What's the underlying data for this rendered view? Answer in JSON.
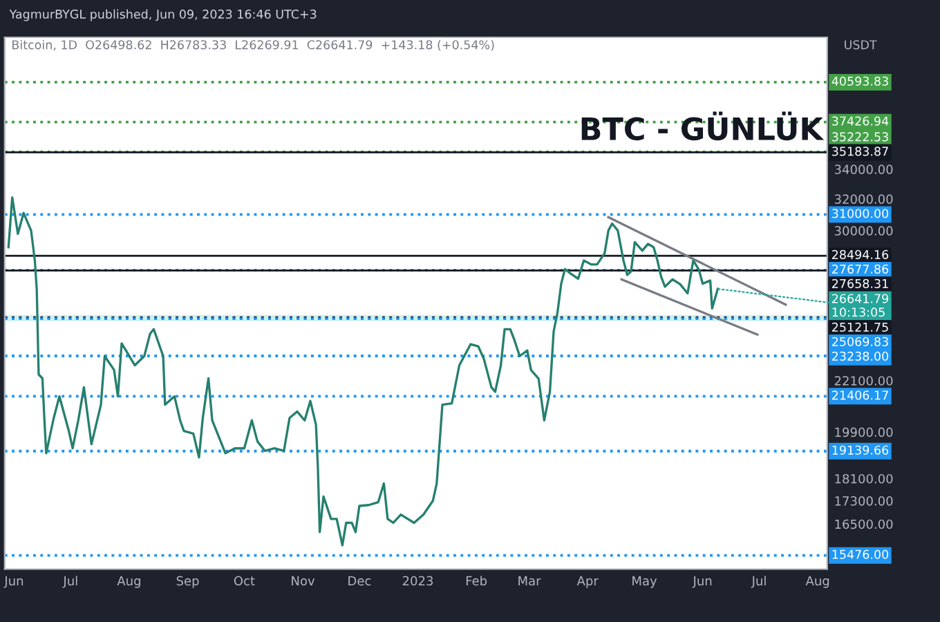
{
  "chart_data": {
    "type": "line",
    "title": "BTC - GÜNLÜK",
    "subtitle": "YagmurBYGL published, Jun 09, 2023 16:46 UTC+3",
    "annotations": [
      "Bitcoin, 1D  O26498.62  H26783.33  L26269.91  C26641.79  +143.18 (+0.54%)",
      "USDT",
      {
        "text": "26641.79\n10:13:05",
        "x": "2023-06-09",
        "y": 26641.79
      }
    ],
    "series": [
      {
        "color": "#26806f",
        "x": [
          "2022-05-29",
          "2022-05-31",
          "2022-06-03",
          "2022-06-06",
          "2022-06-10",
          "2022-06-12",
          "2022-06-13",
          "2022-06-14",
          "2022-06-16",
          "2022-06-17",
          "2022-06-18",
          "2022-06-22",
          "2022-06-25",
          "2022-06-30",
          "2022-07-02",
          "2022-07-05",
          "2022-07-08",
          "2022-07-12",
          "2022-07-17",
          "2022-07-19",
          "2022-07-24",
          "2022-07-26",
          "2022-07-28",
          "2022-08-04",
          "2022-08-09",
          "2022-08-12",
          "2022-08-14",
          "2022-08-19",
          "2022-08-20",
          "2022-08-25",
          "2022-08-28",
          "2022-08-30",
          "2022-09-04",
          "2022-09-07",
          "2022-09-09",
          "2022-09-12",
          "2022-09-14",
          "2022-09-17",
          "2022-09-21",
          "2022-09-26",
          "2022-10-01",
          "2022-10-05",
          "2022-10-08",
          "2022-10-12",
          "2022-10-17",
          "2022-10-22",
          "2022-10-25",
          "2022-10-29",
          "2022-11-02",
          "2022-11-05",
          "2022-11-08",
          "2022-11-09",
          "2022-11-10",
          "2022-11-12",
          "2022-11-16",
          "2022-11-19",
          "2022-11-22",
          "2022-11-24",
          "2022-11-27",
          "2022-11-29",
          "2022-12-01",
          "2022-12-06",
          "2022-12-11",
          "2022-12-14",
          "2022-12-16",
          "2022-12-19",
          "2022-12-23",
          "2022-12-30",
          "2023-01-04",
          "2023-01-09",
          "2023-01-11",
          "2023-01-12",
          "2023-01-14",
          "2023-01-19",
          "2023-01-23",
          "2023-01-29",
          "2023-02-02",
          "2023-02-05",
          "2023-02-09",
          "2023-02-11",
          "2023-02-14",
          "2023-02-16",
          "2023-02-19",
          "2023-02-21",
          "2023-02-24",
          "2023-02-28",
          "2023-03-02",
          "2023-03-06",
          "2023-03-09",
          "2023-03-12",
          "2023-03-14",
          "2023-03-16",
          "2023-03-18",
          "2023-03-20",
          "2023-03-23",
          "2023-03-27",
          "2023-03-30",
          "2023-04-03",
          "2023-04-06",
          "2023-04-10",
          "2023-04-12",
          "2023-04-14",
          "2023-04-17",
          "2023-04-20",
          "2023-04-22",
          "2023-04-24",
          "2023-04-26",
          "2023-04-30",
          "2023-05-03",
          "2023-05-06",
          "2023-05-08",
          "2023-05-10",
          "2023-05-12",
          "2023-05-16",
          "2023-05-20",
          "2023-05-24",
          "2023-05-27",
          "2023-05-30",
          "2023-06-01",
          "2023-06-05",
          "2023-06-06",
          "2023-06-09"
        ],
        "values": [
          29000,
          32100,
          29800,
          31100,
          30000,
          28200,
          26600,
          22380,
          22200,
          20480,
          19060,
          20480,
          21400,
          19940,
          19250,
          20380,
          21800,
          19415,
          21040,
          23230,
          22580,
          21400,
          23840,
          22800,
          23230,
          24300,
          24540,
          23230,
          21040,
          21400,
          20380,
          19940,
          19840,
          18900,
          20480,
          22200,
          20380,
          19800,
          19060,
          19250,
          19250,
          20380,
          19520,
          19150,
          19250,
          19150,
          20480,
          20750,
          20380,
          21200,
          20200,
          18550,
          16230,
          17450,
          16670,
          16670,
          15800,
          16540,
          16540,
          16230,
          17120,
          17150,
          17250,
          17920,
          16670,
          16540,
          16820,
          16540,
          16820,
          17300,
          17920,
          18900,
          21040,
          21100,
          22800,
          23800,
          23700,
          23100,
          21800,
          21600,
          22800,
          24540,
          24540,
          24050,
          23230,
          23500,
          22580,
          22190,
          20380,
          21600,
          24430,
          25370,
          26920,
          27740,
          27480,
          27200,
          28230,
          28000,
          28000,
          28640,
          30000,
          30430,
          30000,
          28230,
          27410,
          27600,
          29300,
          28800,
          29200,
          29000,
          28230,
          27300,
          26760,
          27160,
          26900,
          26400,
          28230,
          27700,
          26920,
          27100,
          25600,
          26641.79
        ]
      },
      {
        "color": "#787b86",
        "x": [
          "2023-04-12",
          "2023-07-15"
        ],
        "values": [
          30830,
          25800
        ]
      },
      {
        "color": "#787b86",
        "x": [
          "2023-04-19",
          "2023-06-30"
        ],
        "values": [
          27160,
          24270
        ]
      }
    ],
    "log": true,
    "xlim": [
      "2022-05-27",
      "2023-08-06"
    ],
    "xticks": [
      {
        "value": "2022-06-01",
        "label": "Jun"
      },
      {
        "value": "2022-07-01",
        "label": "Jul"
      },
      {
        "value": "2022-08-01",
        "label": "Aug"
      },
      {
        "value": "2022-09-01",
        "label": "Sep"
      },
      {
        "value": "2022-10-01",
        "label": "Oct"
      },
      {
        "value": "2022-11-01",
        "label": "Nov"
      },
      {
        "value": "2022-12-01",
        "label": "Dec"
      },
      {
        "value": "2023-01-01",
        "label": "2023"
      },
      {
        "value": "2023-02-01",
        "label": "Feb"
      },
      {
        "value": "2023-03-01",
        "label": "Mar"
      },
      {
        "value": "2023-04-01",
        "label": "Apr"
      },
      {
        "value": "2023-05-01",
        "label": "May"
      },
      {
        "value": "2023-06-01",
        "label": "Jun"
      },
      {
        "value": "2023-07-01",
        "label": "Jul"
      },
      {
        "value": "2023-08-01",
        "label": "Aug"
      }
    ],
    "ylim": [
      15050,
      44480
    ],
    "yticks": [
      {
        "value": 16500,
        "label": "16500.00"
      },
      {
        "value": 17300,
        "label": "17300.00"
      },
      {
        "value": 18100,
        "label": "18100.00"
      },
      {
        "value": 19900,
        "label": "19900.00"
      },
      {
        "value": 22100,
        "label": "22100.00"
      },
      {
        "value": 30000,
        "label": "30000.00"
      },
      {
        "value": 32000,
        "label": "32000.00"
      },
      {
        "value": 34000,
        "label": "34000.00"
      }
    ],
    "ref_lines": [
      {
        "axis": "y",
        "value": 40593.83,
        "label": "40593.83",
        "color": "#43a047",
        "line_style": "dotted"
      },
      {
        "axis": "y",
        "value": 37426.94,
        "label": "37426.94",
        "color": "#43a047",
        "line_style": "dotted"
      },
      {
        "axis": "y",
        "value": 35222.53,
        "label": "35222.53",
        "color": "#43a047",
        "line_style": "dotted"
      },
      {
        "axis": "y",
        "value": 35183.87,
        "label": "35183.87",
        "color": "#131722",
        "line_style": "solid"
      },
      {
        "axis": "y",
        "value": 31000.0,
        "label": "31000.00",
        "color": "#2196f3",
        "line_style": "dotted"
      },
      {
        "axis": "y",
        "value": 28494.16,
        "label": "28494.16",
        "color": "#131722",
        "line_style": "solid"
      },
      {
        "axis": "y",
        "value": 27677.86,
        "label": "27677.86",
        "color": "#2196f3",
        "line_style": "dotted"
      },
      {
        "axis": "y",
        "value": 27658.31,
        "label": "27658.31",
        "color": "#131722",
        "line_style": "solid"
      },
      {
        "axis": "y",
        "value": 25121.75,
        "label": "25121.75",
        "color": "#131722",
        "line_style": "dotted"
      },
      {
        "axis": "y",
        "value": 25069.83,
        "label": "25069.83",
        "color": "#2196f3",
        "line_style": "dotted"
      },
      {
        "axis": "y",
        "value": 23238.0,
        "label": "23238.00",
        "color": "#2196f3",
        "line_style": "dotted"
      },
      {
        "axis": "y",
        "value": 21406.17,
        "label": "21406.17",
        "color": "#2196f3",
        "line_style": "dotted"
      },
      {
        "axis": "y",
        "value": 19139.66,
        "label": "19139.66",
        "color": "#2196f3",
        "line_style": "dotted"
      },
      {
        "axis": "y",
        "value": 15476.0,
        "label": "15476.00",
        "color": "#2196f3",
        "line_style": "dotted"
      }
    ],
    "bands": [
      {
        "axis": "y",
        "from": 24950,
        "to": 25250,
        "color": "#b2ebf2"
      }
    ],
    "grid": false
  }
}
